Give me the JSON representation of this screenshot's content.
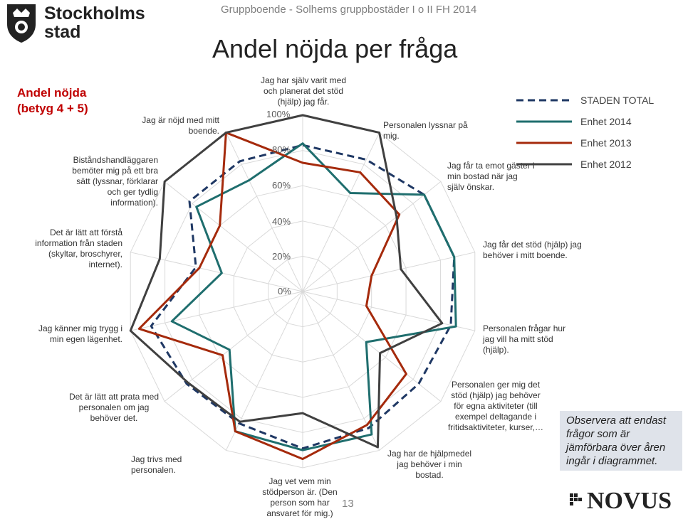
{
  "header": {
    "logo_text_1": "Stockholms",
    "logo_text_2": "stad",
    "subtitle": "Gruppboende - Solhems gruppbostäder I o II FH 2014",
    "title": "Andel nöjda per fråga"
  },
  "left_title": "Andel nöjda (betyg 4 + 5)",
  "note": "Observera att endast frågor som är jämförbara över åren ingår i diagrammet.",
  "footer": {
    "brand": "NOVUS",
    "page_number": "13"
  },
  "chart_data": {
    "type": "radar",
    "radial_ticks": [
      "0%",
      "20%",
      "40%",
      "60%",
      "80%",
      "100%"
    ],
    "range": [
      0,
      100
    ],
    "categories": [
      "Jag har själv varit med och planerat det stöd (hjälp) jag får.",
      "Personalen lyssnar på mig.",
      "Jag får ta emot gäster i min bostad när jag själv önskar.",
      "Jag får det stöd (hjälp) jag behöver i mitt boende.",
      "Personalen frågar hur jag vill ha mitt stöd (hjälp).",
      "Personalen ger mig det stöd (hjälp) jag behöver för egna aktiviteter (till exempel deltagande i fritidsaktiviteter, kurser,…",
      "Jag har de hjälpmedel jag behöver i min bostad.",
      "Jag vet vem min stödperson är. (Den person som har ansvaret för mig.)",
      "Jag trivs med personalen.",
      "Det är lätt att prata med personalen om jag behöver det.",
      "Jag känner mig trygg i min egen lägenhet.",
      "Det är lätt att förstå information från staden (skyltar, broschyrer, internet).",
      "Biståndshandläggaren bemöter mig på ett bra sätt (lyssnar, förklarar och ger tydlig information).",
      "Jag är nöjd med mitt boende."
    ],
    "series": [
      {
        "name": "STADEN TOTAL",
        "color": "#1f3864",
        "style": "dashed",
        "values": [
          83,
          83,
          88,
          88,
          86,
          84,
          86,
          89,
          83,
          84,
          88,
          62,
          82,
          82
        ]
      },
      {
        "name": "Enhet 2014",
        "color": "#1f6e6e",
        "style": "solid",
        "values": [
          84,
          62,
          88,
          88,
          89,
          46,
          90,
          90,
          88,
          53,
          76,
          47,
          77,
          70
        ]
      },
      {
        "name": "Enhet 2013",
        "color": "#a52a0c",
        "style": "solid",
        "values": [
          73,
          75,
          70,
          40,
          37,
          75,
          84,
          95,
          88,
          58,
          95,
          60,
          60,
          100
        ]
      },
      {
        "name": "Enhet 2012",
        "color": "#404040",
        "style": "solid",
        "values": [
          100,
          100,
          68,
          57,
          81,
          56,
          98,
          69,
          82,
          83,
          100,
          83,
          100,
          100
        ]
      }
    ]
  }
}
